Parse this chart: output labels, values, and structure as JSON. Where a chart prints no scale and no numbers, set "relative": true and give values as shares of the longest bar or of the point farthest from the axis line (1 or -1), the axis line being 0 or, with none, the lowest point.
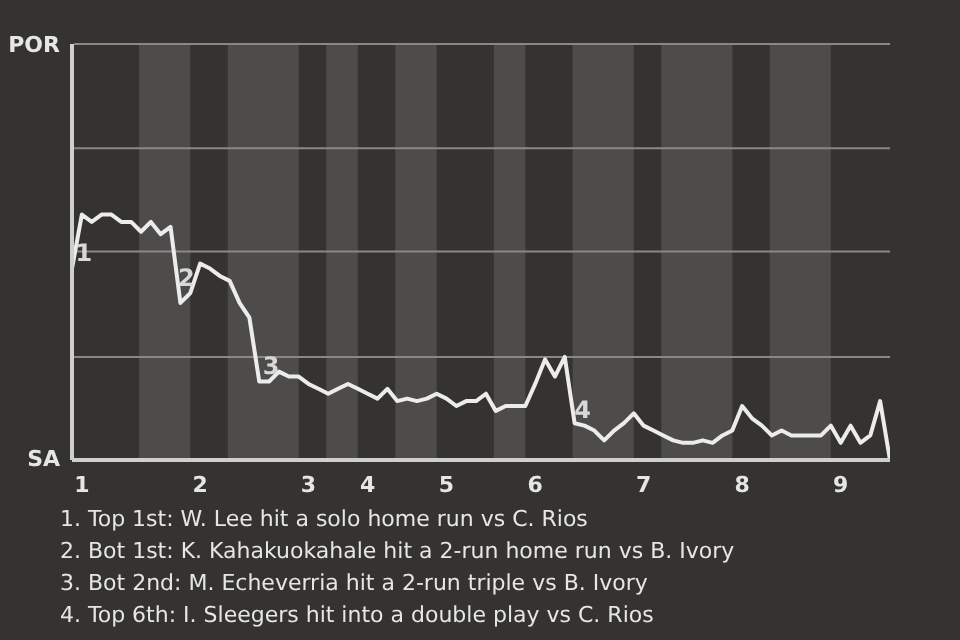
{
  "chart_data": {
    "type": "line",
    "marker": "none",
    "line_style": "solid",
    "relative": true,
    "ref_lines": [
      {
        "axis": "y",
        "value": 0.42,
        "color": "#8a8886"
      },
      {
        "axis": "y",
        "value": 0.85,
        "color": "#8a8886"
      },
      {
        "axis": "y",
        "value": 1.27,
        "color": "#8a8886"
      }
    ],
    "categories": [
      null,
      "1",
      null,
      null,
      null,
      null,
      null,
      null,
      null,
      null,
      null,
      null,
      null,
      "2",
      null,
      null,
      null,
      null,
      null,
      null,
      null,
      null,
      null,
      null,
      "3",
      null,
      null,
      null,
      null,
      null,
      "4",
      null,
      null,
      null,
      null,
      null,
      null,
      null,
      "5",
      null,
      null,
      null,
      null,
      null,
      null,
      null,
      null,
      "6",
      null,
      null,
      null,
      null,
      null,
      null,
      null,
      null,
      null,
      null,
      "7",
      null,
      null,
      null,
      null,
      null,
      null,
      null,
      null,
      null,
      "8",
      null,
      null,
      null,
      null,
      null,
      null,
      null,
      null,
      null,
      "9",
      null,
      null,
      null,
      null,
      null
    ],
    "series": [
      {
        "color": "#ececec",
        "values": [
          0.78,
          1,
          0.97,
          1,
          1,
          0.97,
          0.97,
          0.93,
          0.97,
          0.92,
          0.95,
          0.64,
          0.68,
          0.8,
          0.78,
          0.75,
          0.73,
          0.64,
          0.58,
          0.32,
          0.32,
          0.36,
          0.34,
          0.34,
          0.31,
          0.29,
          0.27,
          0.29,
          0.31,
          0.29,
          0.27,
          0.25,
          0.29,
          0.24,
          0.25,
          0.24,
          0.25,
          0.27,
          0.25,
          0.22,
          0.24,
          0.24,
          0.27,
          0.2,
          0.22,
          0.22,
          0.22,
          0.31,
          0.41,
          0.34,
          0.42,
          0.15,
          0.14,
          0.12,
          0.08,
          0.12,
          0.15,
          0.19,
          0.14,
          0.12,
          0.1,
          0.08,
          0.07,
          0.07,
          0.08,
          0.07,
          0.1,
          0.12,
          0.22,
          0.17,
          0.14,
          0.1,
          0.12,
          0.1,
          0.1,
          0.1,
          0.1,
          0.14,
          0.07,
          0.14,
          0.07,
          0.1,
          0.24,
          0
        ]
      }
    ],
    "annotations": [
      {
        "text": "1",
        "y": 0.78
      },
      {
        "text": "2",
        "y": 0.68
      },
      {
        "text": "3",
        "y": 0.32
      },
      {
        "text": "4",
        "y": 0.14
      },
      "POR",
      "SA",
      "1. Top 1st: W. Lee hit a solo home run vs C. Rios",
      "2. Bot 1st: K. Kahakuokahale hit a 2-run home run vs B. Ivory",
      "3. Bot 2nd: M. Echeverria hit a 2-run triple vs B. Ivory",
      "4. Top 6th: I. Sleegers hit into a double play vs C. Rios"
    ]
  }
}
